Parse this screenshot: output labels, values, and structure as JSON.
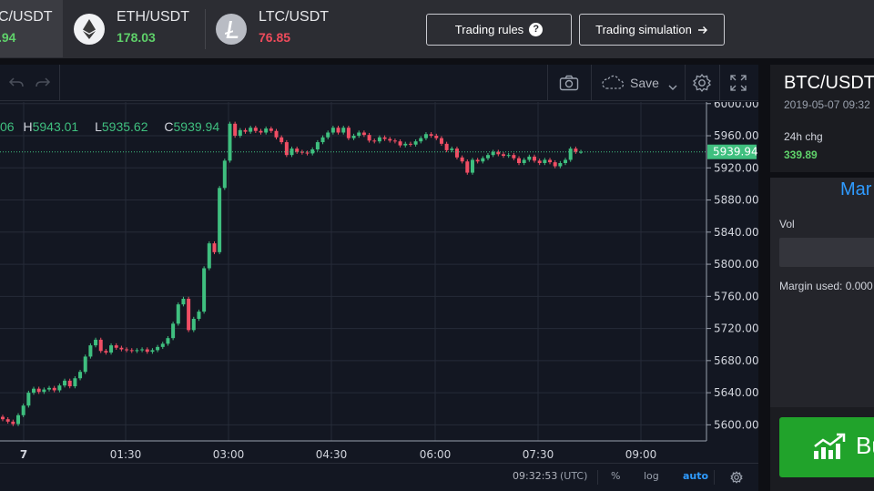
{
  "tickers": [
    {
      "symbol": "C/USDT",
      "price": ".94",
      "price_color": "#5fd16a",
      "icon": "bitcoin-icon"
    },
    {
      "symbol": "ETH/USDT",
      "price": "178.03",
      "price_color": "#5fd16a",
      "icon": "ethereum-icon"
    },
    {
      "symbol": "LTC/USDT",
      "price": "76.85",
      "price_color": "#ef4b5b",
      "icon": "litecoin-icon"
    }
  ],
  "buttons": {
    "trading_rules": "Trading rules",
    "trading_rules_icon": "question-icon",
    "trading_simulation": "Trading simulation",
    "trading_simulation_icon": "arrow-right-icon"
  },
  "chart_toolbar": {
    "save_label": "Save",
    "icons": [
      "undo-icon",
      "redo-icon",
      "camera-icon",
      "cloud-icon",
      "chevron-down-icon",
      "settings-icon",
      "fullscreen-icon"
    ]
  },
  "ohlc": {
    "o_fragment": "06",
    "h_label": "H",
    "h_value": "5943.01",
    "l_label": "L",
    "l_value": "5935.62",
    "c_label": "C",
    "c_value": "5939.94"
  },
  "chart_data": {
    "type": "candlestick",
    "title": "",
    "x_ticks": [
      "7",
      "01:30",
      "03:00",
      "04:30",
      "06:00",
      "07:30",
      "09:00"
    ],
    "y_ticks": [
      "6000.00",
      "5960.00",
      "5920.00",
      "5880.00",
      "5840.00",
      "5800.00",
      "5760.00",
      "5720.00",
      "5680.00",
      "5640.00",
      "5600.00"
    ],
    "ylim": [
      5580,
      6002
    ],
    "last_price": "5939.94",
    "up_color": "#3fbf7f",
    "down_color": "#f04e64",
    "grid": true,
    "candles_close": [
      5607,
      5604,
      5601,
      5612,
      5624,
      5640,
      5645,
      5641,
      5644,
      5646,
      5643,
      5649,
      5655,
      5648,
      5658,
      5666,
      5685,
      5699,
      5706,
      5692,
      5690,
      5699,
      5696,
      5694,
      5693,
      5692,
      5693,
      5694,
      5691,
      5693,
      5697,
      5701,
      5708,
      5726,
      5750,
      5757,
      5718,
      5732,
      5741,
      5795,
      5826,
      5815,
      5895,
      5929,
      5975,
      5960,
      5967,
      5965,
      5970,
      5966,
      5964,
      5969,
      5966,
      5958,
      5952,
      5936,
      5944,
      5940,
      5939,
      5938,
      5943,
      5952,
      5958,
      5964,
      5970,
      5964,
      5970,
      5957,
      5960,
      5964,
      5961,
      5954,
      5953,
      5958,
      5956,
      5954,
      5953,
      5948,
      5950,
      5949,
      5953,
      5957,
      5962,
      5960,
      5957,
      5950,
      5942,
      5944,
      5933,
      5928,
      5914,
      5930,
      5928,
      5932,
      5936,
      5940,
      5937,
      5935,
      5936,
      5932,
      5926,
      5930,
      5934,
      5929,
      5926,
      5930,
      5927,
      5922,
      5926,
      5930,
      5944,
      5940,
      5940
    ]
  },
  "bottom_bar": {
    "time": "09:32:53",
    "timezone": "(UTC)",
    "percent": "%",
    "log": "log",
    "auto": "auto",
    "settings_icon": "gear-icon"
  },
  "side_panel": {
    "pair": "BTC/USDT",
    "date": "2019-05-07 09:32",
    "chg_label": "24h chg",
    "chg_value": "339.89",
    "tab": "Mar",
    "vol_label": "Vol",
    "margin_label": "Margin used: 0.000",
    "buy_label": "Bu",
    "buy_icon": "chart-up-icon"
  }
}
